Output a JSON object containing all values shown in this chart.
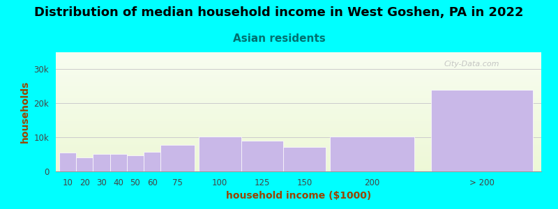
{
  "title": "Distribution of median household income in West Goshen, PA in 2022",
  "subtitle": "Asian residents",
  "xlabel": "household income ($1000)",
  "ylabel": "households",
  "categories": [
    "10",
    "20",
    "30",
    "40",
    "50",
    "60",
    "75",
    "100",
    "125",
    "150",
    "200",
    "> 200"
  ],
  "values": [
    5500,
    4000,
    5200,
    5200,
    4800,
    5800,
    7800,
    10200,
    9000,
    7200,
    10200,
    24000
  ],
  "bar_color": "#c9b8e8",
  "bar_edgecolor": "#ffffff",
  "background_color": "#00ffff",
  "title_color": "#000000",
  "subtitle_color": "#007070",
  "axis_label_color": "#994400",
  "tick_color": "#444444",
  "grid_color": "#cccccc",
  "yticks": [
    0,
    10000,
    20000,
    30000
  ],
  "ytick_labels": [
    "0",
    "10k",
    "20k",
    "30k"
  ],
  "ylim": [
    0,
    35000
  ],
  "watermark": "City-Data.com",
  "title_fontsize": 13,
  "subtitle_fontsize": 11,
  "label_fontsize": 10,
  "x_centers": [
    0.5,
    1.5,
    2.5,
    3.5,
    4.5,
    5.5,
    7.0,
    9.5,
    12.0,
    14.5,
    18.5,
    25.0
  ],
  "widths": [
    1.0,
    1.0,
    1.0,
    1.0,
    1.0,
    1.0,
    2.0,
    2.5,
    2.5,
    2.5,
    5.0,
    6.0
  ],
  "xlim": [
    -0.2,
    28.5
  ]
}
